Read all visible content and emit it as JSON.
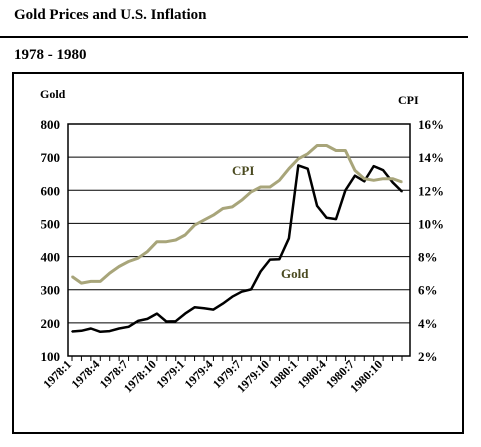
{
  "header": {
    "title": "Gold Prices and U.S. Inflation",
    "subtitle": "1978 - 1980"
  },
  "chart_data": {
    "type": "line",
    "x": [
      "1978:1",
      "1978:2",
      "1978:3",
      "1978:4",
      "1978:5",
      "1978:6",
      "1978:7",
      "1978:8",
      "1978:9",
      "1978:10",
      "1978:11",
      "1978:12",
      "1979:1",
      "1979:2",
      "1979:3",
      "1979:4",
      "1979:5",
      "1979:6",
      "1979:7",
      "1979:8",
      "1979:9",
      "1979:10",
      "1979:11",
      "1979:12",
      "1980:1",
      "1980:2",
      "1980:3",
      "1980:4",
      "1980:5",
      "1980:6",
      "1980:7",
      "1980:8",
      "1980:9",
      "1980:10",
      "1980:11",
      "1980:12"
    ],
    "tick_labels": [
      "1978:1",
      "1978:4",
      "1978:7",
      "1978:10",
      "1979:1",
      "1979:4",
      "1979:7",
      "1979:10",
      "1980:1",
      "1980:4",
      "1980:7",
      "1980:10"
    ],
    "left_axis": {
      "label": "Gold",
      "ticks": [
        "800",
        "700",
        "600",
        "500",
        "400",
        "300",
        "200",
        "100"
      ],
      "ylim": [
        100,
        800
      ]
    },
    "right_axis": {
      "label": "CPI",
      "ticks": [
        "16%",
        "14%",
        "12%",
        "10%",
        "8%",
        "6%",
        "4%",
        "2%"
      ],
      "ylim": [
        2,
        16
      ]
    },
    "series": [
      {
        "name": "Gold",
        "axis": "left",
        "color": "#000000",
        "values": [
          174,
          176,
          183,
          173,
          175,
          183,
          188,
          206,
          212,
          228,
          204,
          205,
          228,
          247,
          244,
          240,
          258,
          279,
          294,
          301,
          355,
          391,
          392,
          455,
          675,
          665,
          553,
          517,
          513,
          600,
          644,
          627,
          673,
          661,
          624,
          596
        ]
      },
      {
        "name": "CPI",
        "axis": "right",
        "color": "#a8a57a",
        "values": [
          6.8,
          6.4,
          6.5,
          6.5,
          7.0,
          7.4,
          7.7,
          7.9,
          8.3,
          8.9,
          8.9,
          9.0,
          9.3,
          9.9,
          10.2,
          10.5,
          10.9,
          11.0,
          11.4,
          11.9,
          12.2,
          12.2,
          12.6,
          13.3,
          13.9,
          14.2,
          14.7,
          14.7,
          14.4,
          14.4,
          13.2,
          12.7,
          12.6,
          12.7,
          12.7,
          12.5
        ]
      }
    ],
    "annotations": [
      {
        "text": "CPI",
        "series": "CPI"
      },
      {
        "text": "Gold",
        "series": "Gold"
      }
    ],
    "grid": "horizontal"
  }
}
